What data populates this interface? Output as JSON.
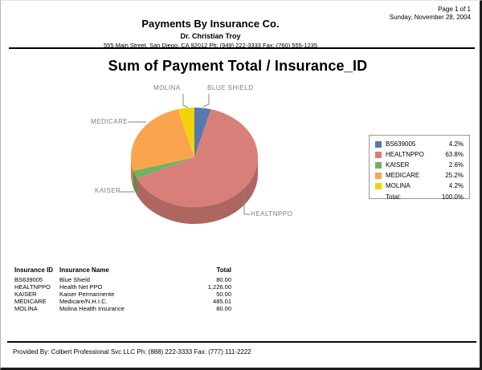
{
  "page": {
    "page_info": "Page 1 of 1",
    "date": "Sunday, November 28, 2004",
    "company": "Payments By Insurance Co.",
    "doctor": "Dr. Christian Troy",
    "address": "555 Main Street, San Diego, CA 92012 Ph: (949) 222-3333 Fax: (760) 555-1235",
    "footer": "Provided By: Colbert Professional Svc LLC Ph: (888) 222-3333 Fax: (777) 111-2222"
  },
  "chart_data": {
    "type": "pie",
    "style": "3d",
    "title": "Sum of Payment Total / Insurance_ID",
    "direction": "clockwise",
    "start_angle_deg": 0,
    "legend_position": "right",
    "slices": [
      {
        "id": "BS639005",
        "callout": "BLUE SHIELD",
        "value": 80.0,
        "percent": 4.2,
        "color": "#5779af"
      },
      {
        "id": "HEALTNPPO",
        "callout": "HEALTNPPO",
        "value": 1226.0,
        "percent": 63.8,
        "color": "#d97f79"
      },
      {
        "id": "KAISER",
        "callout": "KAISER",
        "value": 50.0,
        "percent": 2.6,
        "color": "#72b161"
      },
      {
        "id": "MEDICARE",
        "callout": "MEDICARE",
        "value": 485.01,
        "percent": 25.2,
        "color": "#faa44e"
      },
      {
        "id": "MOLINA",
        "callout": "MOLINA",
        "value": 80.0,
        "percent": 4.2,
        "color": "#f2d30b"
      }
    ],
    "legend": {
      "total_label": "Total:",
      "total_percent": "100.0%"
    }
  },
  "table": {
    "headers": [
      "Insurance ID",
      "Insurance Name",
      "Total"
    ],
    "rows": [
      [
        "BS639005",
        "Blue Shield",
        "80.00"
      ],
      [
        "HEALTNPPO",
        "Health Net PPO",
        "1,226.00"
      ],
      [
        "KAISER",
        "Kaiser Permannente",
        "50.00"
      ],
      [
        "MEDICARE",
        "Medicare/N.H.I.C.",
        "485.01"
      ],
      [
        "MOLINA",
        "Molina Health Insurance",
        "80.00"
      ]
    ]
  }
}
